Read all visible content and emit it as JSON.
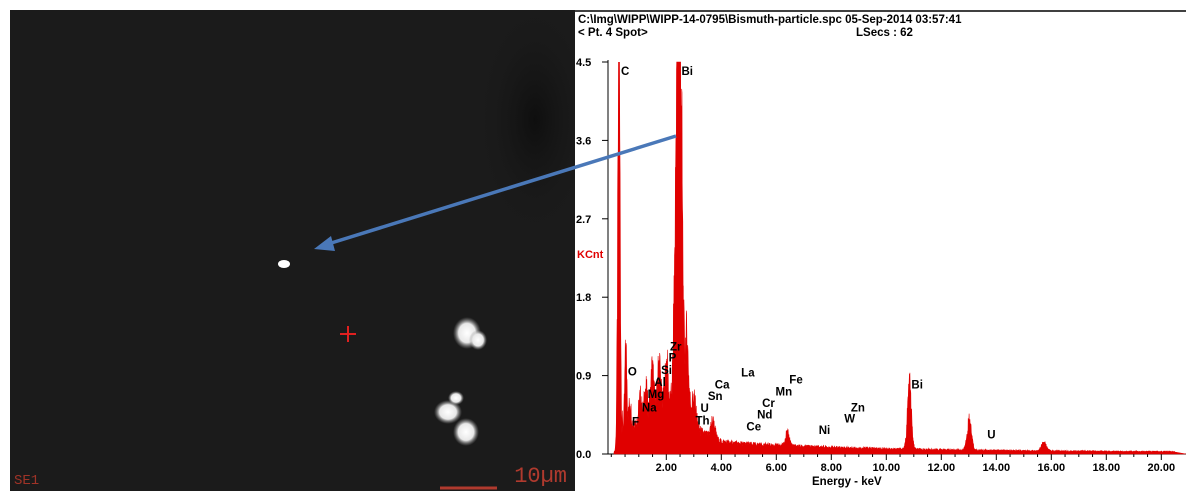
{
  "sem_image": {
    "detector_label": "SE1",
    "scale_label": "10µm"
  },
  "header": {
    "file_line": "C:\\Img\\WIPP\\WIPP-14-0795\\Bismuth-particle.spc  05-Sep-2014 03:57:41",
    "spot_label": "< Pt.  4 Spot>",
    "lsecs_label": "LSecs :  62"
  },
  "colors": {
    "spectrum_fill": "#e00000",
    "arrow": "#4a78b8",
    "sem_background": "#1b1b1b",
    "crosshair": "#e02020"
  },
  "chart_data": {
    "type": "area",
    "title": "",
    "xlabel": "Energy - keV",
    "ylabel": "KCnt",
    "xlim": [
      0,
      20.5
    ],
    "ylim": [
      0,
      4.5
    ],
    "x_ticks": [
      "2.00",
      "4.00",
      "6.00",
      "8.00",
      "10.00",
      "12.00",
      "14.00",
      "16.00",
      "18.00",
      "20.00"
    ],
    "x_tick_values": [
      2,
      4,
      6,
      8,
      10,
      12,
      14,
      16,
      18,
      20
    ],
    "y_ticks": [
      "0.0",
      "0.9",
      "1.8",
      "2.7",
      "3.6",
      "4.5"
    ],
    "y_tick_values": [
      0,
      0.9,
      1.8,
      2.7,
      3.6,
      4.5
    ],
    "peaks": [
      {
        "x": 0.28,
        "y": 4.4,
        "w": 0.045
      },
      {
        "x": 0.53,
        "y": 0.9,
        "w": 0.04
      },
      {
        "x": 0.68,
        "y": 0.3,
        "w": 0.04
      },
      {
        "x": 1.05,
        "y": 0.25,
        "w": 0.05
      },
      {
        "x": 1.25,
        "y": 0.3,
        "w": 0.05
      },
      {
        "x": 1.49,
        "y": 0.45,
        "w": 0.05
      },
      {
        "x": 1.74,
        "y": 0.5,
        "w": 0.05
      },
      {
        "x": 2.01,
        "y": 0.45,
        "w": 0.05
      },
      {
        "x": 2.32,
        "y": 1.25,
        "w": 0.06
      },
      {
        "x": 2.42,
        "y": 4.38,
        "w": 0.055
      },
      {
        "x": 2.53,
        "y": 3.45,
        "w": 0.06
      },
      {
        "x": 2.74,
        "y": 0.9,
        "w": 0.07
      },
      {
        "x": 3.0,
        "y": 0.3,
        "w": 0.08
      },
      {
        "x": 3.69,
        "y": 0.2,
        "w": 0.08
      },
      {
        "x": 6.4,
        "y": 0.14,
        "w": 0.08
      },
      {
        "x": 10.84,
        "y": 0.72,
        "w": 0.07
      },
      {
        "x": 13.02,
        "y": 0.33,
        "w": 0.08
      },
      {
        "x": 15.73,
        "y": 0.09,
        "w": 0.09
      }
    ],
    "element_labels": [
      {
        "label": "C",
        "x": 0.28,
        "y": 4.35
      },
      {
        "label": "Bi",
        "x": 2.48,
        "y": 4.35
      },
      {
        "label": "Zr",
        "x": 2.06,
        "y": 1.19
      },
      {
        "label": "P",
        "x": 2.01,
        "y": 1.06
      },
      {
        "label": "Si",
        "x": 1.74,
        "y": 0.92
      },
      {
        "label": "O",
        "x": 0.53,
        "y": 0.9
      },
      {
        "label": "Al",
        "x": 1.49,
        "y": 0.78
      },
      {
        "label": "Mg",
        "x": 1.25,
        "y": 0.64
      },
      {
        "label": "Na",
        "x": 1.04,
        "y": 0.49
      },
      {
        "label": "F",
        "x": 0.68,
        "y": 0.33
      },
      {
        "label": "Ca",
        "x": 3.69,
        "y": 0.75
      },
      {
        "label": "Sn",
        "x": 3.44,
        "y": 0.62
      },
      {
        "label": "U",
        "x": 3.17,
        "y": 0.48
      },
      {
        "label": "Th",
        "x": 2.99,
        "y": 0.34
      },
      {
        "label": "La",
        "x": 4.65,
        "y": 0.89
      },
      {
        "label": "Fe",
        "x": 6.4,
        "y": 0.81
      },
      {
        "label": "Mn",
        "x": 5.9,
        "y": 0.67
      },
      {
        "label": "Cr",
        "x": 5.41,
        "y": 0.54
      },
      {
        "label": "Nd",
        "x": 5.23,
        "y": 0.41
      },
      {
        "label": "Ce",
        "x": 4.84,
        "y": 0.27
      },
      {
        "label": "Ni",
        "x": 7.47,
        "y": 0.23
      },
      {
        "label": "Zn",
        "x": 8.64,
        "y": 0.49
      },
      {
        "label": "W",
        "x": 8.4,
        "y": 0.36
      },
      {
        "label": "Bi",
        "x": 10.84,
        "y": 0.75
      },
      {
        "label": "U",
        "x": 13.6,
        "y": 0.18
      }
    ]
  }
}
